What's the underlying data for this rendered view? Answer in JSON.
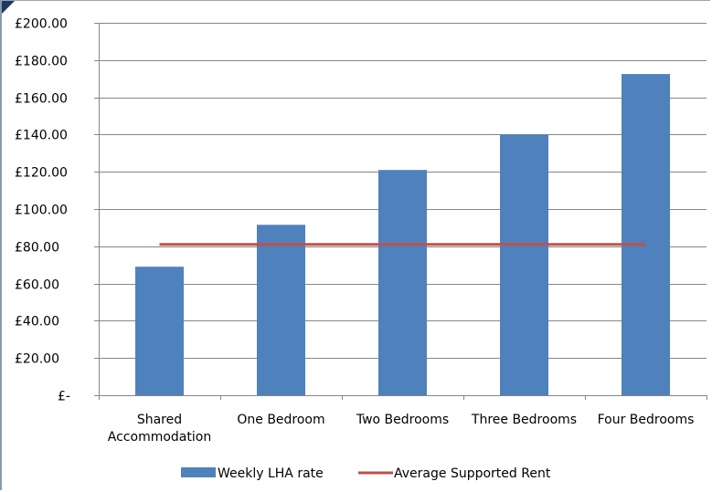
{
  "chart_data": {
    "type": "bar",
    "categories": [
      [
        "Shared",
        "Accommodation"
      ],
      [
        "One Bedroom"
      ],
      [
        "Two Bedrooms"
      ],
      [
        "Three Bedrooms"
      ],
      [
        "Four Bedrooms"
      ]
    ],
    "series": [
      {
        "name": "Weekly LHA rate",
        "type": "bar",
        "color": "#4f81bd",
        "values": [
          69.0,
          91.5,
          121.0,
          140.0,
          172.5
        ]
      },
      {
        "name": "Average Supported Rent",
        "type": "line",
        "color": "#c0504d",
        "values": [
          81.0,
          81.0,
          81.0,
          81.0,
          81.0
        ]
      }
    ],
    "y_ticks": [
      {
        "value": 0,
        "label": "£-"
      },
      {
        "value": 20,
        "label": "£20.00"
      },
      {
        "value": 40,
        "label": "£40.00"
      },
      {
        "value": 60,
        "label": "£60.00"
      },
      {
        "value": 80,
        "label": "£80.00"
      },
      {
        "value": 100,
        "label": "£100.00"
      },
      {
        "value": 120,
        "label": "£120.00"
      },
      {
        "value": 140,
        "label": "£140.00"
      },
      {
        "value": 160,
        "label": "£160.00"
      },
      {
        "value": 180,
        "label": "£180.00"
      },
      {
        "value": 200,
        "label": "£200.00"
      }
    ],
    "ylim": [
      0,
      200
    ],
    "grid": "horizontal",
    "legend_position": "bottom",
    "title": "",
    "xlabel": "",
    "ylabel": ""
  }
}
